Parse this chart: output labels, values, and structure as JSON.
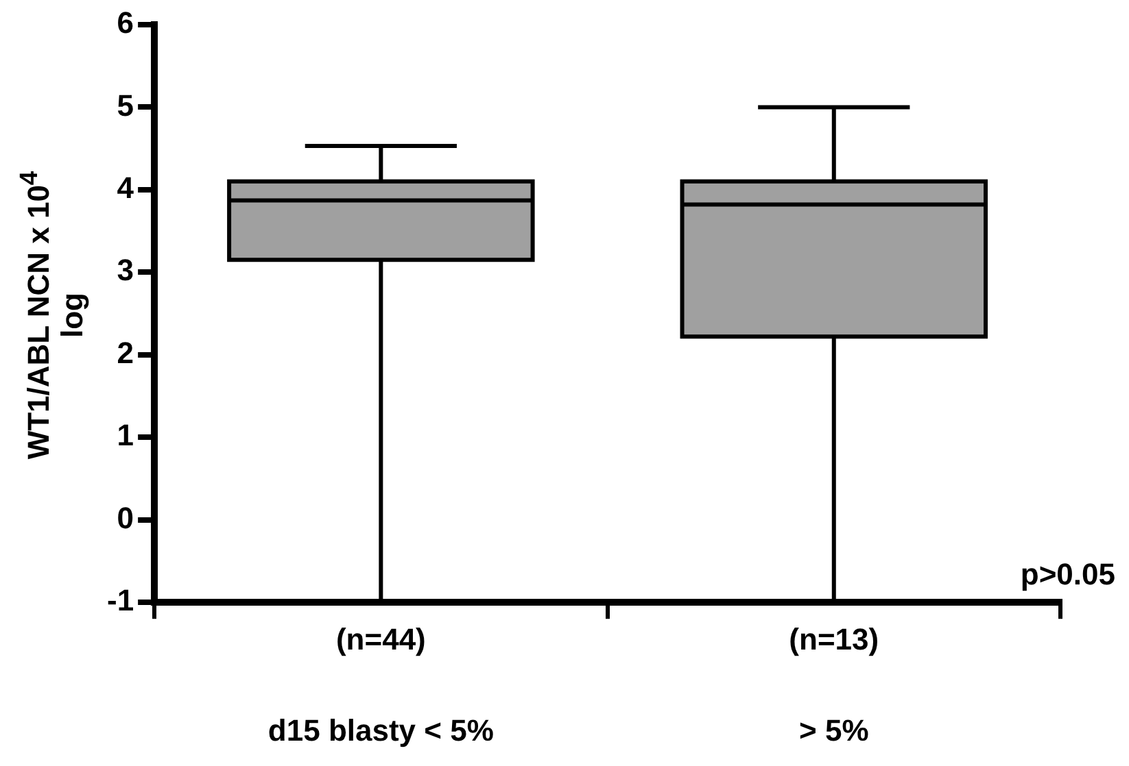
{
  "chart_data": {
    "type": "box",
    "ylabel": "WT1/ABL NCN x 10$^{4}$\nlog",
    "categories": [
      "(n=44)",
      "(n=13)"
    ],
    "color": "#a0a0a0",
    "boxes": [
      {
        "low": -1,
        "q1": 3.15,
        "median": 3.87,
        "q3": 4.1,
        "high": 4.53
      },
      {
        "low": -1,
        "q1": 2.22,
        "median": 3.82,
        "q3": 4.1,
        "high": 5.0
      }
    ],
    "ylim": [
      -1,
      6
    ],
    "yticks": [
      -1,
      0,
      1,
      2,
      3,
      4,
      5,
      6
    ],
    "annotations": [
      "d15 blasty < 5%",
      "> 5%",
      "p>0.05"
    ]
  }
}
